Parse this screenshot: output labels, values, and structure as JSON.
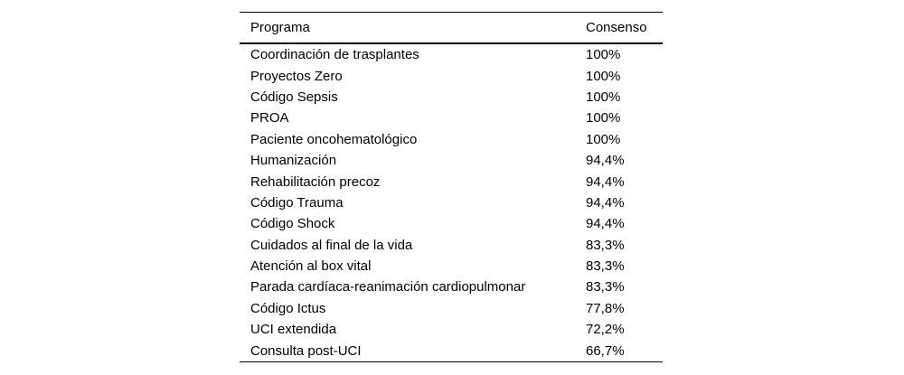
{
  "table": {
    "columns": [
      "Programa",
      "Consenso"
    ],
    "rows": [
      {
        "programa": "Coordinación de trasplantes",
        "consenso": "100%"
      },
      {
        "programa": "Proyectos Zero",
        "consenso": "100%"
      },
      {
        "programa": "Código Sepsis",
        "consenso": "100%"
      },
      {
        "programa": "PROA",
        "consenso": "100%"
      },
      {
        "programa": "Paciente oncohematológico",
        "consenso": "100%"
      },
      {
        "programa": "Humanización",
        "consenso": "94,4%"
      },
      {
        "programa": "Rehabilitación precoz",
        "consenso": "94,4%"
      },
      {
        "programa": "Código Trauma",
        "consenso": "94,4%"
      },
      {
        "programa": "Código Shock",
        "consenso": "94,4%"
      },
      {
        "programa": "Cuidados al final de la vida",
        "consenso": "83,3%"
      },
      {
        "programa": "Atención al box vital",
        "consenso": "83,3%"
      },
      {
        "programa": "Parada cardíaca-reanimación cardiopulmonar",
        "consenso": "83,3%"
      },
      {
        "programa": "Código Ictus",
        "consenso": "77,8%"
      },
      {
        "programa": "UCI extendida",
        "consenso": "72,2%"
      },
      {
        "programa": "Consulta post-UCI",
        "consenso": "66,7%"
      }
    ],
    "colors": {
      "text": "#000000",
      "rule": "#000000",
      "background": "#ffffff"
    }
  },
  "chart_data": {
    "type": "table",
    "title": "",
    "columns": [
      "Programa",
      "Consenso"
    ],
    "categories": [
      "Coordinación de trasplantes",
      "Proyectos Zero",
      "Código Sepsis",
      "PROA",
      "Paciente oncohematológico",
      "Humanización",
      "Rehabilitación precoz",
      "Código Trauma",
      "Código Shock",
      "Cuidados al final de la vida",
      "Atención al box vital",
      "Parada cardíaca-reanimación cardiopulmonar",
      "Código Ictus",
      "UCI extendida",
      "Consulta post-UCI"
    ],
    "values_percent": [
      100,
      100,
      100,
      100,
      100,
      94.4,
      94.4,
      94.4,
      94.4,
      83.3,
      83.3,
      83.3,
      77.8,
      72.2,
      66.7
    ]
  }
}
